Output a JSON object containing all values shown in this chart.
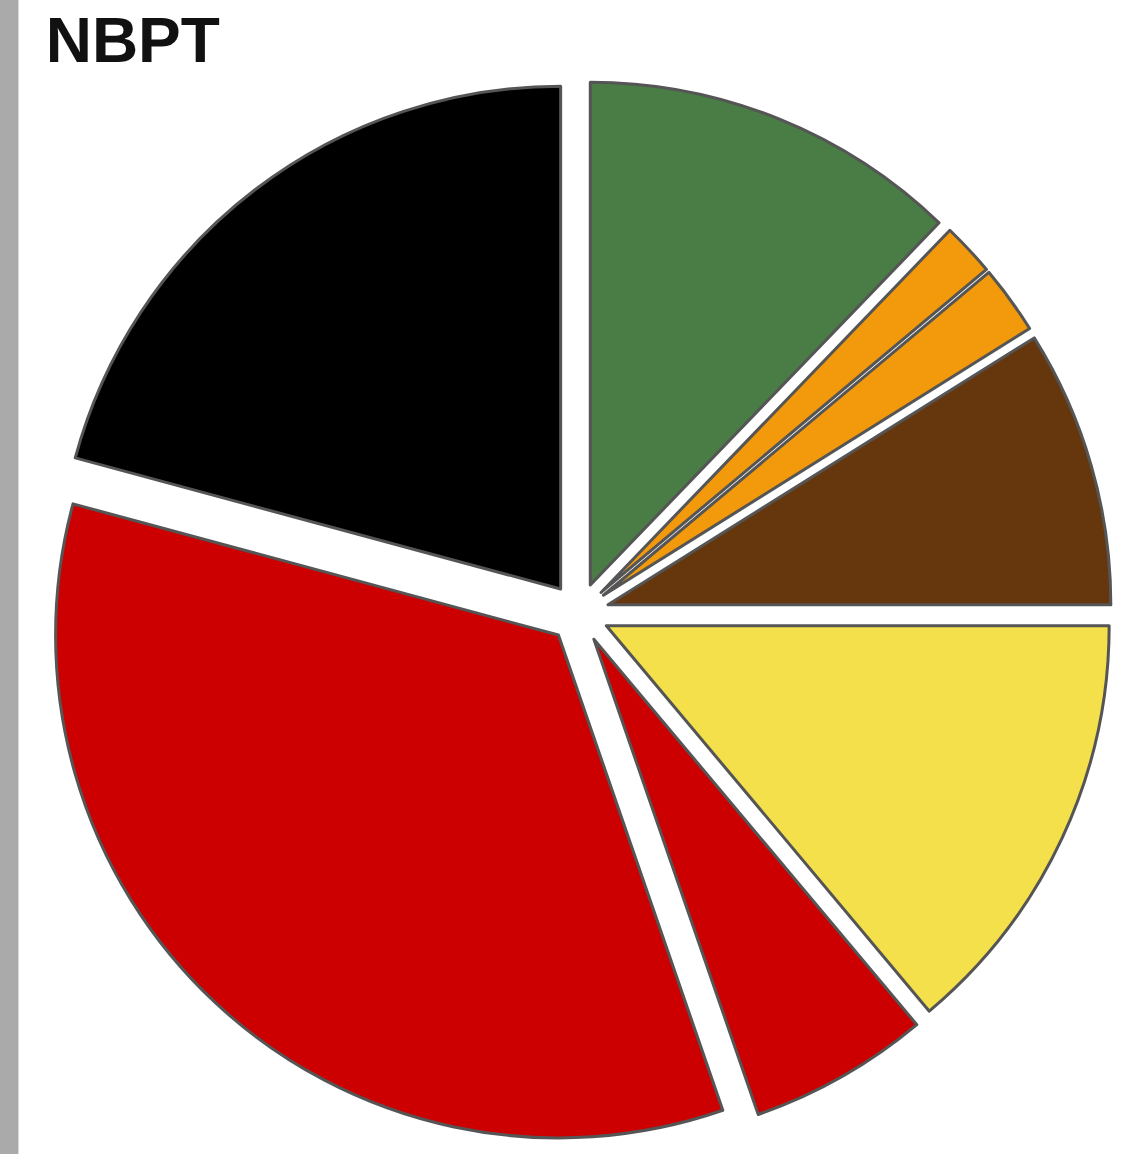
{
  "chart_data": {
    "type": "pie",
    "title": "NBPT",
    "categories": [
      null,
      null,
      null,
      null,
      null,
      null,
      null,
      null
    ],
    "values": [
      12.2,
      1.7,
      2.2,
      8.9,
      13.9,
      5.8,
      34.5,
      20.8
    ],
    "colors": [
      "#4a7c45",
      "#f29a0c",
      "#f29a0c",
      "#66360c",
      "#f4e04a",
      "#cc0000",
      "#cc0000",
      "#000000"
    ],
    "legend": false
  }
}
